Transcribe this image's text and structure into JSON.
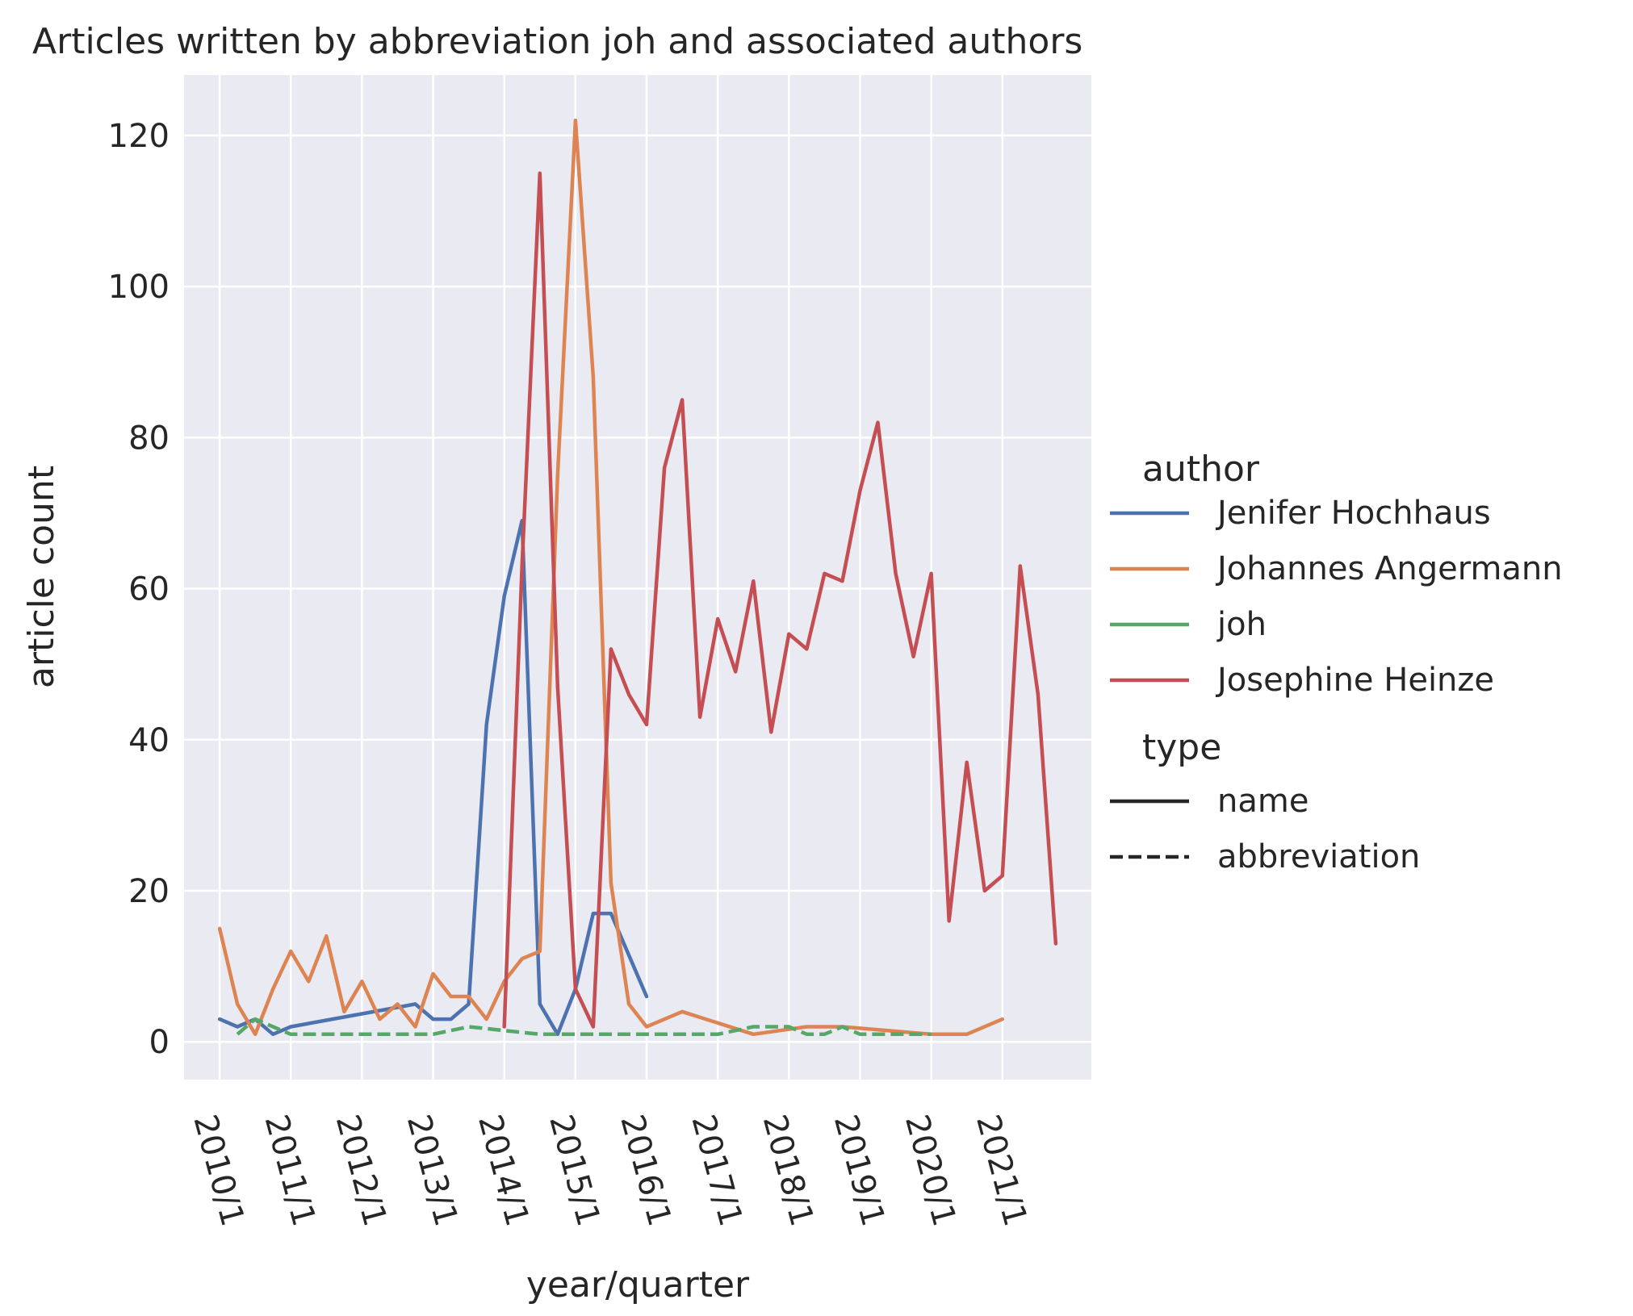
{
  "chart_data": {
    "type": "line",
    "title": "Articles written by abbreviation joh and associated authors",
    "xlabel": "year/quarter",
    "ylabel": "article count",
    "x_unit": "quarter",
    "x_tick_labels": [
      "2010/1",
      "2011/1",
      "2012/1",
      "2013/1",
      "2014/1",
      "2015/1",
      "2016/1",
      "2017/1",
      "2018/1",
      "2019/1",
      "2020/1",
      "2021/1"
    ],
    "xlim": [
      "2009/3",
      "2022/2"
    ],
    "ylim": [
      -5,
      128
    ],
    "y_ticks": [
      0,
      20,
      40,
      60,
      80,
      100,
      120
    ],
    "grid": true,
    "background": "#eaeaf2",
    "legend_position": "right",
    "legend": {
      "author_title": "author",
      "type_title": "type",
      "types": [
        {
          "label": "name",
          "dash": "solid"
        },
        {
          "label": "abbreviation",
          "dash": "dashed"
        }
      ]
    },
    "series": [
      {
        "name": "Jenifer Hochhaus",
        "type": "name",
        "color": "#4c72b0",
        "x": [
          "2010/1",
          "2010/2",
          "2010/3",
          "2010/4",
          "2011/1",
          "2012/4",
          "2013/1",
          "2013/2",
          "2013/3",
          "2013/4",
          "2014/1",
          "2014/2",
          "2014/3",
          "2014/4",
          "2015/1",
          "2015/2",
          "2015/3",
          "2016/1"
        ],
        "y": [
          3,
          2,
          3,
          1,
          2,
          5,
          3,
          3,
          5,
          42,
          59,
          69,
          5,
          1,
          7,
          17,
          17,
          6
        ]
      },
      {
        "name": "Johannes Angermann",
        "type": "name",
        "color": "#dd8452",
        "x": [
          "2010/1",
          "2010/2",
          "2010/3",
          "2010/4",
          "2011/1",
          "2011/2",
          "2011/3",
          "2011/4",
          "2012/1",
          "2012/2",
          "2012/3",
          "2012/4",
          "2013/1",
          "2013/2",
          "2013/3",
          "2013/4",
          "2014/1",
          "2014/2",
          "2014/3",
          "2014/4",
          "2015/1",
          "2015/2",
          "2015/3",
          "2015/4",
          "2016/1",
          "2016/3",
          "2017/3",
          "2018/2",
          "2018/4",
          "2020/1",
          "2020/3",
          "2021/1"
        ],
        "y": [
          15,
          5,
          1,
          7,
          12,
          8,
          14,
          4,
          8,
          3,
          5,
          2,
          9,
          6,
          6,
          3,
          8,
          11,
          12,
          75,
          122,
          88,
          21,
          5,
          2,
          4,
          1,
          2,
          2,
          1,
          1,
          3
        ]
      },
      {
        "name": "joh",
        "type": "abbreviation",
        "color": "#55a868",
        "x": [
          "2010/2",
          "2010/3",
          "2011/1",
          "2012/4",
          "2013/1",
          "2013/3",
          "2014/1",
          "2014/3",
          "2017/1",
          "2017/3",
          "2018/1",
          "2018/2",
          "2018/3",
          "2018/4",
          "2019/1",
          "2020/1"
        ],
        "y": [
          1,
          3,
          1,
          1,
          1,
          2,
          1.5,
          1,
          1,
          2,
          2,
          1,
          1,
          2,
          1,
          1
        ]
      },
      {
        "name": "Josephine Heinze",
        "type": "name",
        "color": "#c44e52",
        "x": [
          "2014/1",
          "2014/2",
          "2014/3",
          "2014/4",
          "2015/1",
          "2015/2",
          "2015/3",
          "2015/4",
          "2016/1",
          "2016/2",
          "2016/3",
          "2016/4",
          "2017/1",
          "2017/2",
          "2017/3",
          "2017/4",
          "2018/1",
          "2018/2",
          "2018/3",
          "2018/4",
          "2019/1",
          "2019/2",
          "2019/3",
          "2019/4",
          "2020/1",
          "2020/2",
          "2020/3",
          "2020/4",
          "2021/1",
          "2021/2",
          "2021/3",
          "2021/4"
        ],
        "y": [
          2,
          63,
          115,
          47,
          7,
          2,
          52,
          46,
          42,
          76,
          85,
          43,
          56,
          49,
          61,
          41,
          54,
          52,
          62,
          61,
          73,
          82,
          62,
          51,
          62,
          16,
          37,
          20,
          22,
          63,
          46,
          13
        ]
      }
    ]
  }
}
